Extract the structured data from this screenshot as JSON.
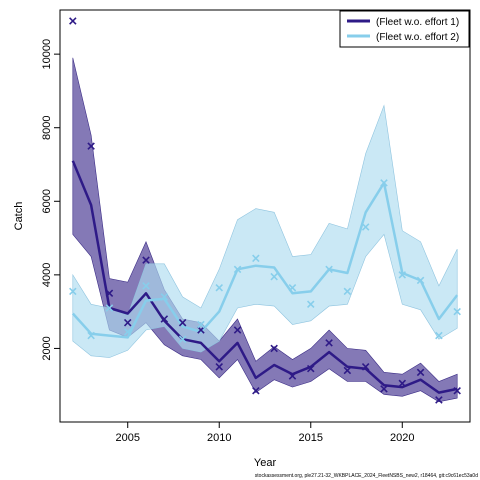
{
  "chart_data": {
    "type": "line",
    "xlabel": "Year",
    "ylabel": "Catch",
    "xlim": [
      2001.3,
      2023.7
    ],
    "ylim": [
      0,
      11200
    ],
    "x_ticks": [
      2005,
      2010,
      2015,
      2020
    ],
    "y_ticks": [
      2000,
      4000,
      6000,
      8000,
      10000
    ],
    "legend_position": "top-right",
    "footer": "stockassessment.org, ple27.21-32_WKBPLACE_2024_FleetNSBS_new2, r18464, git:c9c61ec53a0d",
    "x": [
      2002,
      2003,
      2004,
      2005,
      2006,
      2007,
      2008,
      2009,
      2010,
      2011,
      2012,
      2013,
      2014,
      2015,
      2016,
      2017,
      2018,
      2019,
      2020,
      2021,
      2022,
      2023
    ],
    "series": [
      {
        "name": "(Fleet w.o. effort 1)",
        "color": "#2E1A87",
        "band_color": "#5B4C9E",
        "fitted": [
          7100,
          5900,
          3100,
          2950,
          3500,
          2750,
          2250,
          2150,
          1650,
          2150,
          1200,
          1550,
          1300,
          1500,
          1900,
          1500,
          1450,
          1000,
          950,
          1150,
          800,
          900
        ],
        "lower": [
          5100,
          4500,
          2500,
          2300,
          2700,
          2100,
          1800,
          1700,
          1200,
          1700,
          800,
          1150,
          950,
          1100,
          1450,
          1100,
          1100,
          750,
          700,
          850,
          550,
          650
        ],
        "upper": [
          9900,
          7800,
          3900,
          3800,
          4900,
          3600,
          2800,
          2700,
          2200,
          2800,
          1650,
          2050,
          1700,
          2000,
          2500,
          2000,
          1950,
          1350,
          1300,
          1600,
          1100,
          1300
        ],
        "observed": [
          10900,
          7500,
          3500,
          2700,
          4400,
          2800,
          2700,
          2500,
          1500,
          2500,
          850,
          2000,
          1250,
          1450,
          2150,
          1400,
          1500,
          900,
          1050,
          1350,
          600,
          850
        ]
      },
      {
        "name": "(Fleet w.o. effort 2)",
        "color": "#87CEEB",
        "band_color": "#ADDBF0",
        "fitted": [
          2950,
          2400,
          2350,
          2300,
          3300,
          3350,
          2600,
          2450,
          3000,
          4150,
          4250,
          4200,
          3500,
          3550,
          4150,
          4050,
          5700,
          6500,
          4050,
          3850,
          2800,
          3450
        ],
        "lower": [
          2200,
          1800,
          1750,
          1950,
          2500,
          2600,
          2000,
          1900,
          2200,
          3100,
          3200,
          3150,
          2650,
          2750,
          3150,
          3200,
          4500,
          5100,
          3200,
          3050,
          2250,
          2550
        ],
        "upper": [
          4000,
          3200,
          3100,
          2900,
          4300,
          4300,
          3400,
          3100,
          4150,
          5500,
          5800,
          5700,
          4500,
          4550,
          5400,
          5250,
          7300,
          8600,
          5200,
          4900,
          3700,
          4700
        ],
        "observed": [
          3550,
          2350,
          3100,
          2450,
          3700,
          3400,
          2250,
          2650,
          3650,
          4150,
          4450,
          3950,
          3650,
          3200,
          4150,
          3550,
          5300,
          6500,
          4000,
          3850,
          2350,
          3000
        ]
      }
    ]
  }
}
